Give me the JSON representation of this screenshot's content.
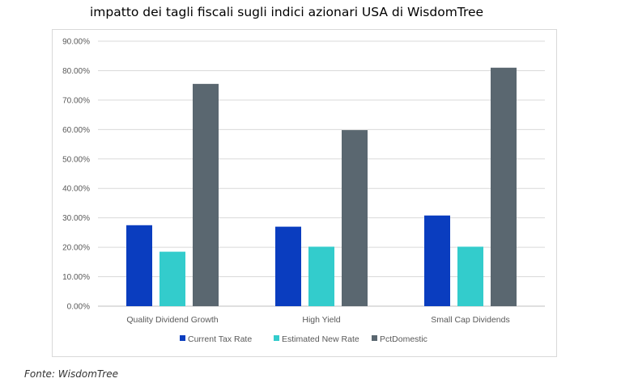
{
  "title": "impatto dei tagli fiscali sugli indici azionari USA di WisdomTree",
  "source": "Fonte: WisdomTree",
  "chart_data": {
    "type": "bar",
    "categories": [
      "Quality Dividend Growth",
      "High Yield",
      "Small Cap Dividends"
    ],
    "series": [
      {
        "name": "Current Tax Rate",
        "color": "#0a3dbf",
        "values": [
          27.5,
          27.0,
          30.8
        ]
      },
      {
        "name": "Estimated New Rate",
        "color": "#33cccc",
        "values": [
          18.5,
          20.2,
          20.2
        ]
      },
      {
        "name": "PctDomestic",
        "color": "#5a6770",
        "values": [
          75.5,
          59.8,
          81.0
        ]
      }
    ],
    "y_ticks": [
      "0.00%",
      "10.00%",
      "20.00%",
      "30.00%",
      "40.00%",
      "50.00%",
      "60.00%",
      "70.00%",
      "80.00%",
      "90.00%"
    ],
    "ylim": [
      0,
      90
    ],
    "grid": true,
    "legend_position": "bottom",
    "xlabel": "",
    "ylabel": ""
  }
}
